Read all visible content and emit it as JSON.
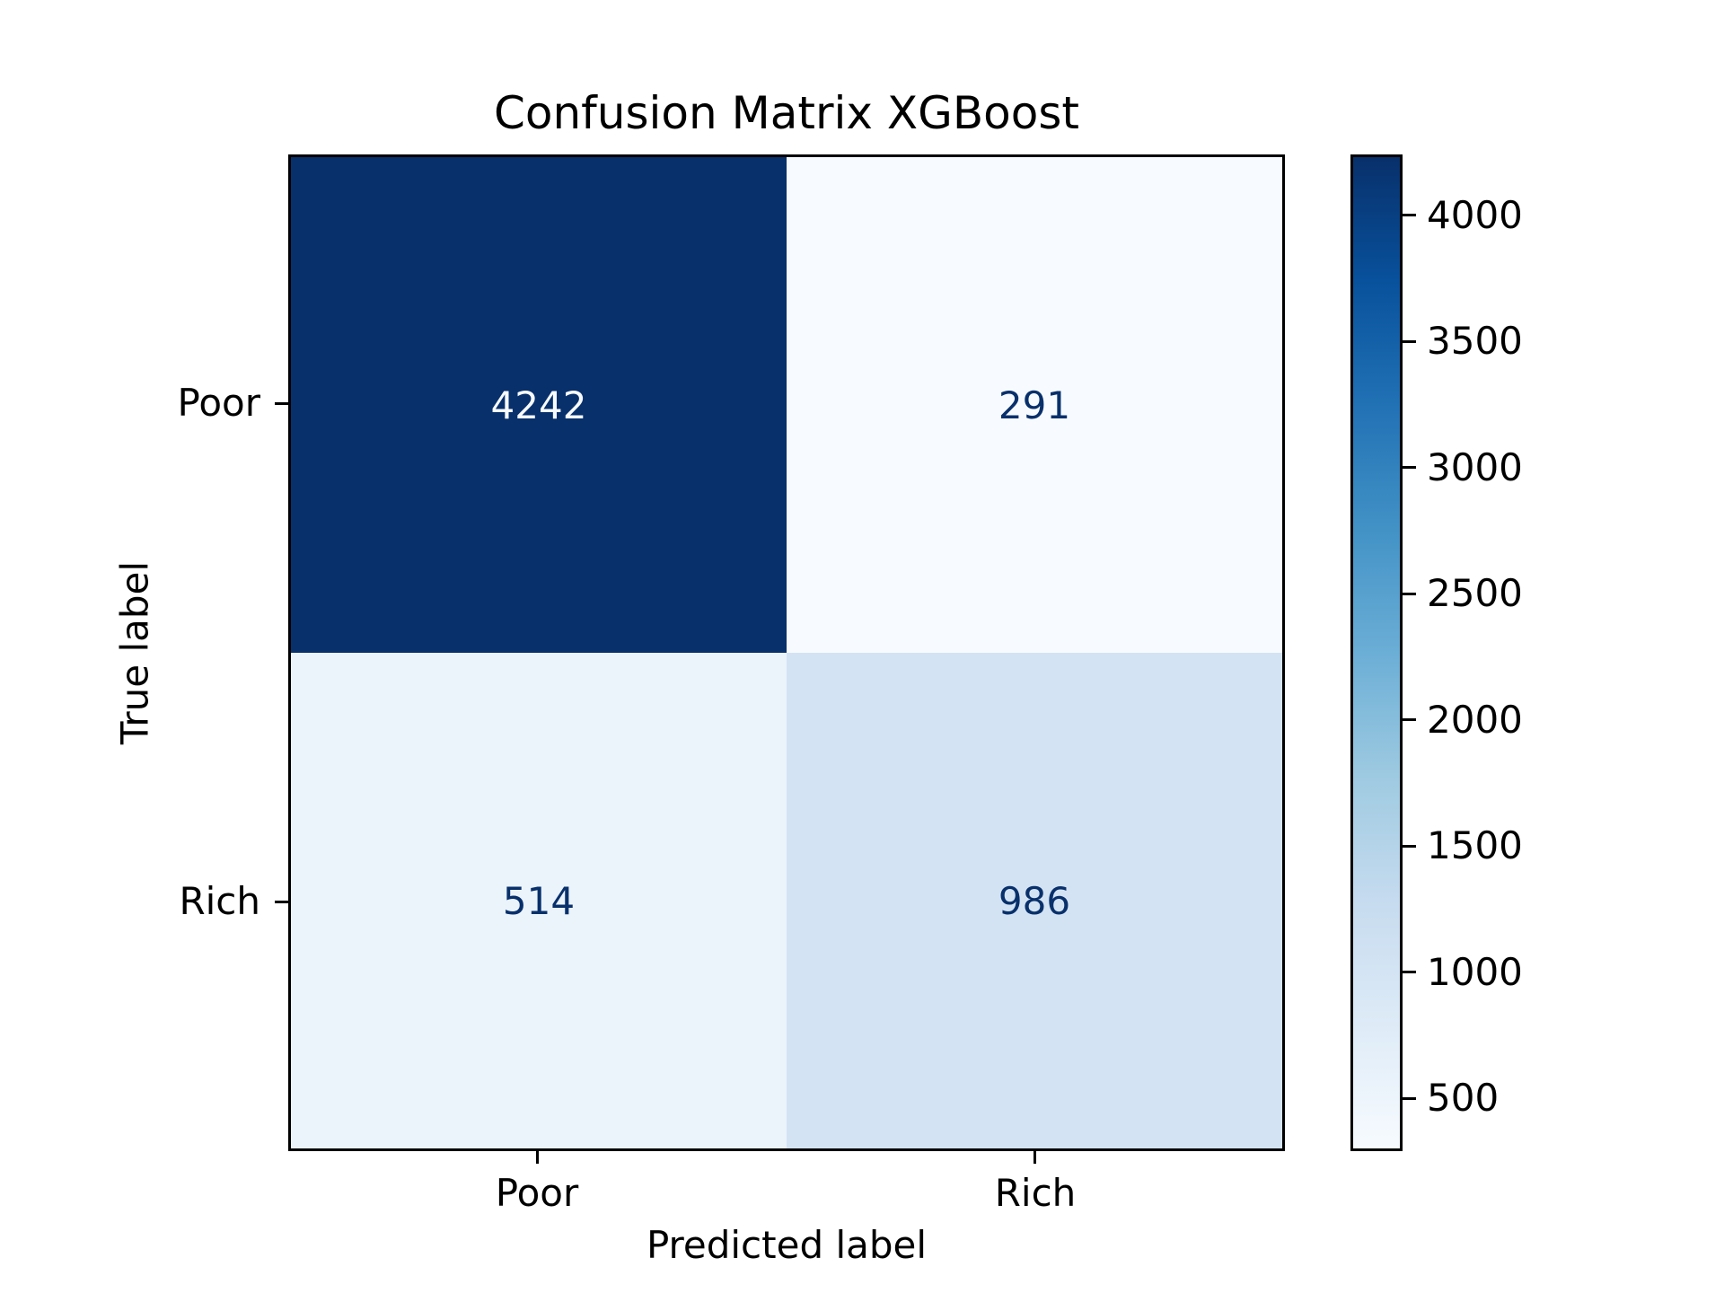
{
  "chart_data": {
    "type": "heatmap",
    "variant": "confusion_matrix",
    "title": "Confusion Matrix XGBoost",
    "xlabel": "Predicted label",
    "ylabel": "True label",
    "x_tick_labels": [
      "Poor",
      "Rich"
    ],
    "y_tick_labels": [
      "Poor",
      "Rich"
    ],
    "rows": [
      {
        "true_label": "Poor",
        "values": [
          4242,
          291
        ]
      },
      {
        "true_label": "Rich",
        "values": [
          514,
          986
        ]
      }
    ],
    "cells": [
      {
        "true": "Poor",
        "predicted": "Poor",
        "value": "4242",
        "bg": "#08306b",
        "fg": "#f7fbff"
      },
      {
        "true": "Poor",
        "predicted": "Rich",
        "value": "291",
        "bg": "#f7fbff",
        "fg": "#08306b"
      },
      {
        "true": "Rich",
        "predicted": "Poor",
        "value": "514",
        "bg": "#ebf3fb",
        "fg": "#08306b"
      },
      {
        "true": "Rich",
        "predicted": "Rich",
        "value": "986",
        "bg": "#d3e3f3",
        "fg": "#08306b"
      }
    ],
    "colormap": "Blues",
    "grid": false,
    "legend_position": "right-colorbar",
    "colorbar": {
      "vmin": 291,
      "vmax": 4242,
      "ticks": [
        500,
        1000,
        1500,
        2000,
        2500,
        3000,
        3500,
        4000
      ],
      "gradient_stops_bottom_to_top": [
        "#f7fbff",
        "#deebf7",
        "#c6dbef",
        "#9ecae1",
        "#6baed6",
        "#4292c6",
        "#2171b5",
        "#08519c",
        "#08306b"
      ]
    },
    "colors": {
      "background": "#ffffff",
      "text": "#000000",
      "axis": "#000000",
      "cmap_min": "#f7fbff",
      "cmap_max": "#08306b"
    }
  }
}
